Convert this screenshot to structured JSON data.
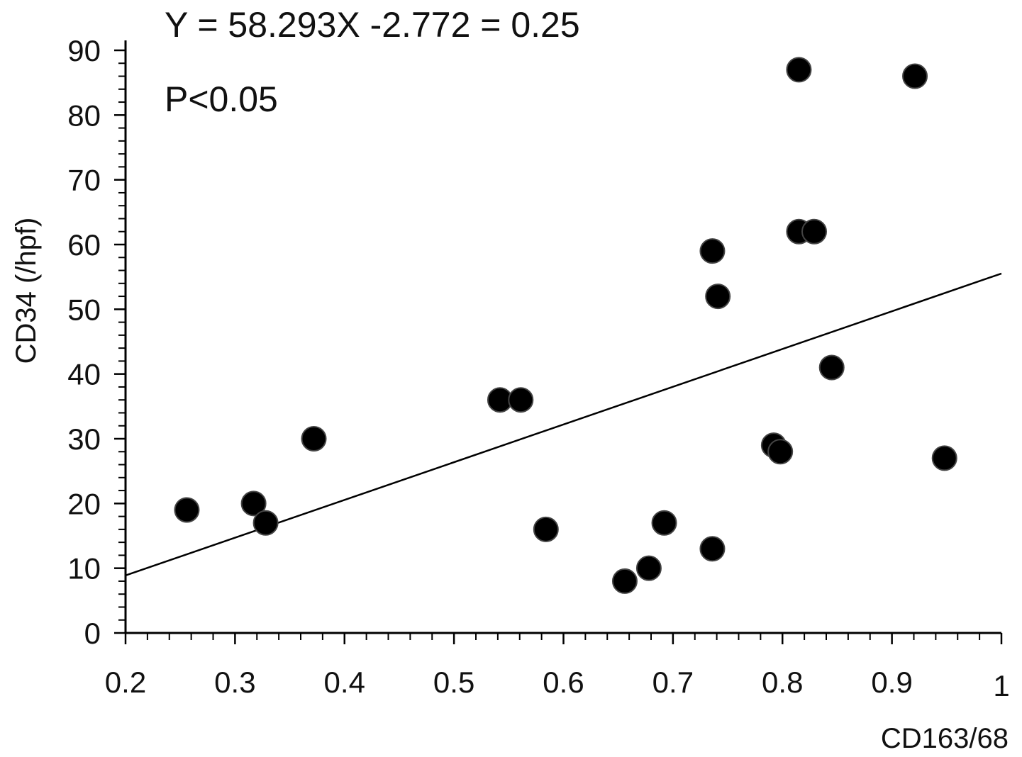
{
  "chart_data": {
    "type": "scatter",
    "title": "",
    "annotations": {
      "equation": "Y = 58.293X -2.772 = 0.25",
      "pvalue": "P<0.05"
    },
    "xlabel": "CD163/68",
    "ylabel": "CD34 (/hpf)",
    "xlim": [
      0.2,
      1.0
    ],
    "ylim": [
      0,
      90
    ],
    "xticks": [
      0.2,
      0.3,
      0.4,
      0.5,
      0.6,
      0.7,
      0.8,
      0.9,
      1.0
    ],
    "xtick_labels": [
      "0.2",
      "0.3",
      "0.4",
      "0.5",
      "0.6",
      "0.7",
      "0.8",
      "0.9",
      "1"
    ],
    "yticks": [
      0,
      10,
      20,
      30,
      40,
      50,
      60,
      70,
      80,
      90
    ],
    "ytick_labels": [
      "0",
      "10",
      "20",
      "30",
      "40",
      "50",
      "60",
      "70",
      "80",
      "90"
    ],
    "grid": false,
    "fit_line": {
      "slope": 58.293,
      "intercept": -2.772
    },
    "points": [
      {
        "x": 0.256,
        "y": 19
      },
      {
        "x": 0.317,
        "y": 20
      },
      {
        "x": 0.328,
        "y": 17
      },
      {
        "x": 0.372,
        "y": 30
      },
      {
        "x": 0.542,
        "y": 36
      },
      {
        "x": 0.561,
        "y": 36
      },
      {
        "x": 0.584,
        "y": 16
      },
      {
        "x": 0.656,
        "y": 8
      },
      {
        "x": 0.678,
        "y": 10
      },
      {
        "x": 0.692,
        "y": 17
      },
      {
        "x": 0.736,
        "y": 59
      },
      {
        "x": 0.741,
        "y": 52
      },
      {
        "x": 0.736,
        "y": 13
      },
      {
        "x": 0.792,
        "y": 29
      },
      {
        "x": 0.798,
        "y": 28
      },
      {
        "x": 0.815,
        "y": 87
      },
      {
        "x": 0.815,
        "y": 62
      },
      {
        "x": 0.829,
        "y": 62
      },
      {
        "x": 0.845,
        "y": 41
      },
      {
        "x": 0.921,
        "y": 86
      },
      {
        "x": 0.948,
        "y": 27
      }
    ]
  }
}
